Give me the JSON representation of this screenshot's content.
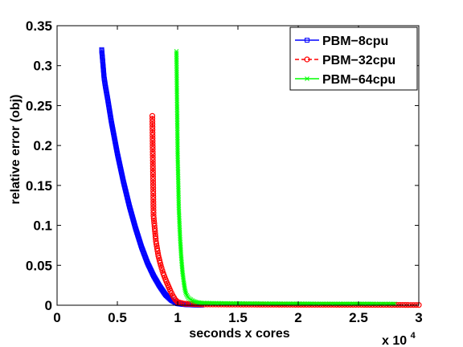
{
  "chart_data": {
    "type": "line",
    "xlabel": "seconds x cores",
    "ylabel": "relative error (obj)",
    "x_multiplier_label": "x 10",
    "x_multiplier_exponent": "4",
    "xlim": [
      0,
      3
    ],
    "ylim": [
      0,
      0.35
    ],
    "xticks": [
      "0",
      "0.5",
      "1",
      "1.5",
      "2",
      "2.5",
      "3"
    ],
    "yticks": [
      "0",
      "0.05",
      "0.1",
      "0.15",
      "0.2",
      "0.25",
      "0.3",
      "0.35"
    ],
    "grid": false,
    "legend_position": "top-right",
    "series": [
      {
        "name": "PBM−8cpu",
        "color": "#0000ff",
        "linestyle": "solid",
        "marker": "square",
        "points": [
          [
            0.37,
            0.32
          ],
          [
            0.38,
            0.303
          ],
          [
            0.39,
            0.285
          ],
          [
            0.4,
            0.275
          ],
          [
            0.42,
            0.258
          ],
          [
            0.45,
            0.23
          ],
          [
            0.5,
            0.19
          ],
          [
            0.55,
            0.155
          ],
          [
            0.6,
            0.124
          ],
          [
            0.65,
            0.097
          ],
          [
            0.7,
            0.073
          ],
          [
            0.75,
            0.053
          ],
          [
            0.8,
            0.037
          ],
          [
            0.85,
            0.024
          ],
          [
            0.9,
            0.013
          ],
          [
            0.95,
            0.006
          ],
          [
            1.0,
            0.002
          ],
          [
            1.05,
            0.001
          ],
          [
            1.1,
            0.0005
          ],
          [
            1.2,
            0.0002
          ]
        ]
      },
      {
        "name": "PBM−32cpu",
        "color": "#ff0000",
        "linestyle": "dashed",
        "marker": "circle",
        "points": [
          [
            0.79,
            0.237
          ],
          [
            0.8,
            0.112
          ],
          [
            0.82,
            0.08
          ],
          [
            0.84,
            0.062
          ],
          [
            0.86,
            0.05
          ],
          [
            0.88,
            0.04
          ],
          [
            0.9,
            0.032
          ],
          [
            0.92,
            0.025
          ],
          [
            0.94,
            0.018
          ],
          [
            0.96,
            0.012
          ],
          [
            0.98,
            0.007
          ],
          [
            1.0,
            0.004
          ],
          [
            1.05,
            0.002
          ],
          [
            1.2,
            0.001
          ],
          [
            1.5,
            0.0008
          ],
          [
            2.0,
            0.0006
          ],
          [
            2.5,
            0.0005
          ],
          [
            2.8,
            0.0004
          ],
          [
            3.0,
            0.0003
          ]
        ]
      },
      {
        "name": "PBM−64cpu",
        "color": "#00ff00",
        "linestyle": "solid",
        "marker": "x",
        "points": [
          [
            0.99,
            0.318
          ],
          [
            1.0,
            0.19
          ],
          [
            1.01,
            0.12
          ],
          [
            1.02,
            0.085
          ],
          [
            1.03,
            0.06
          ],
          [
            1.04,
            0.042
          ],
          [
            1.05,
            0.03
          ],
          [
            1.06,
            0.02
          ],
          [
            1.07,
            0.014
          ],
          [
            1.09,
            0.009
          ],
          [
            1.12,
            0.006
          ],
          [
            1.15,
            0.004
          ],
          [
            1.2,
            0.003
          ],
          [
            1.4,
            0.0025
          ],
          [
            1.7,
            0.0022
          ],
          [
            2.0,
            0.002
          ],
          [
            2.4,
            0.0019
          ],
          [
            2.8,
            0.0018
          ]
        ]
      }
    ]
  }
}
